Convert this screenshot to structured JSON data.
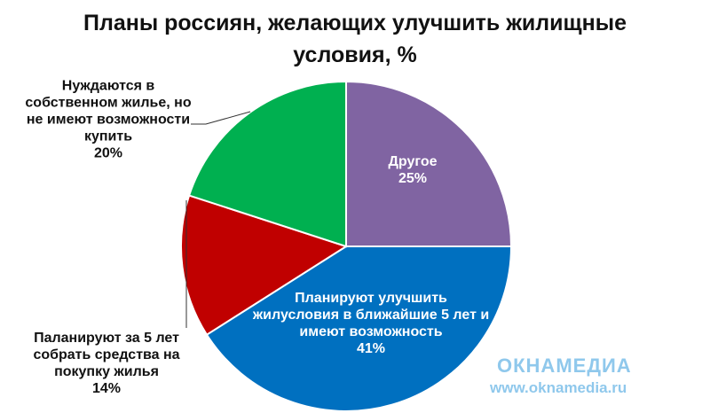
{
  "chart_data": {
    "type": "pie",
    "title": "Планы россиян, желающих улучшить жилищные условия, %",
    "categories": [
      "Другое",
      "Планируют улучшить жилусловия в ближайшие 5 лет и имеют возможность",
      "Паланируют за 5 лет собрать средства на покупку жилья",
      "Нуждаются в собственном жилье, но не имеют возможности купить"
    ],
    "values": [
      25,
      41,
      14,
      20
    ],
    "value_labels": [
      "25%",
      "41%",
      "14%",
      "20%"
    ],
    "colors": [
      "#8064a2",
      "#0070c0",
      "#c00000",
      "#00b050"
    ]
  },
  "watermark": {
    "brand": "ОКНАМЕДИА",
    "url": "www.oknamedia.ru"
  }
}
